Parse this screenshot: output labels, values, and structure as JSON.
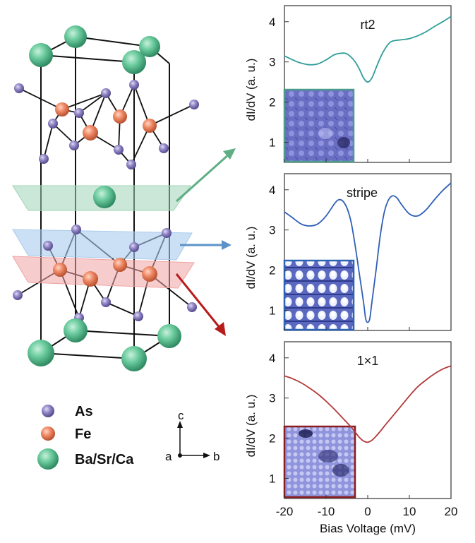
{
  "legend": {
    "items": [
      {
        "label": "As",
        "color": "#8f82bf"
      },
      {
        "label": "Fe",
        "color": "#ef8a6a"
      },
      {
        "label": "Ba/Sr/Ca",
        "color": "#62c49a"
      }
    ]
  },
  "axes_labels": {
    "c": "c",
    "a": "a",
    "b": "b"
  },
  "colors": {
    "plane_top": "#9fd4b6",
    "plane_mid": "#a9cbec",
    "plane_bot": "#f0a3a3",
    "arrow_top": "#5fae85",
    "arrow_mid": "#5b93c8",
    "arrow_bot": "#b71c1c"
  },
  "chart_data": [
    {
      "type": "line",
      "title": "rt2",
      "ylabel": "dI/dV (a. u.)",
      "xlim": [
        -20,
        20
      ],
      "ylim": [
        0.5,
        4.4
      ],
      "yticks": [
        1,
        2,
        3,
        4
      ],
      "color": "#2f9e99",
      "inset": "rt2-topograph",
      "series": [
        {
          "x": [
            -20,
            -18,
            -16,
            -14,
            -12,
            -10,
            -8,
            -6,
            -5,
            -4,
            -3,
            -2,
            -1,
            0,
            1,
            2,
            3,
            4,
            5,
            6,
            8,
            10,
            12,
            14,
            16,
            18,
            20
          ],
          "y": [
            3.15,
            3.05,
            2.97,
            2.93,
            2.95,
            3.05,
            3.18,
            3.22,
            3.2,
            3.12,
            3.0,
            2.82,
            2.6,
            2.5,
            2.6,
            2.85,
            3.1,
            3.3,
            3.45,
            3.52,
            3.55,
            3.58,
            3.65,
            3.75,
            3.88,
            4.0,
            4.13
          ]
        }
      ]
    },
    {
      "type": "line",
      "title": "stripe",
      "ylabel": "dI/dV (a. u.)",
      "xlim": [
        -20,
        20
      ],
      "ylim": [
        0.5,
        4.4
      ],
      "yticks": [
        1,
        2,
        3,
        4
      ],
      "color": "#2f5fb8",
      "inset": "stripe-topograph",
      "series": [
        {
          "x": [
            -20,
            -18,
            -16,
            -14,
            -12,
            -10,
            -8,
            -7,
            -6,
            -5,
            -4,
            -3,
            -2,
            -1,
            -0.5,
            0,
            0.5,
            1,
            2,
            3,
            4,
            5,
            6,
            7,
            8,
            10,
            12,
            14,
            16,
            18,
            20
          ],
          "y": [
            3.45,
            3.3,
            3.15,
            3.1,
            3.15,
            3.35,
            3.65,
            3.75,
            3.72,
            3.55,
            3.2,
            2.6,
            1.9,
            1.2,
            0.8,
            0.7,
            0.8,
            1.2,
            2.0,
            2.85,
            3.45,
            3.75,
            3.85,
            3.8,
            3.65,
            3.4,
            3.35,
            3.5,
            3.75,
            3.98,
            4.17
          ]
        }
      ]
    },
    {
      "type": "line",
      "title": "1×1",
      "ylabel": "dI/dV (a. u.)",
      "xlabel": "Bias Voltage (mV)",
      "xlim": [
        -20,
        20
      ],
      "ylim": [
        0.5,
        4.4
      ],
      "yticks": [
        1,
        2,
        3,
        4
      ],
      "xticks": [
        -20,
        -10,
        0,
        10,
        20
      ],
      "color": "#b23a3a",
      "inset": "1x1-topograph",
      "series": [
        {
          "x": [
            -20,
            -18,
            -16,
            -14,
            -12,
            -10,
            -8,
            -6,
            -4,
            -3,
            -2,
            -1,
            0,
            1,
            2,
            3,
            4,
            6,
            8,
            10,
            12,
            14,
            16,
            18,
            20
          ],
          "y": [
            3.55,
            3.48,
            3.38,
            3.25,
            3.1,
            2.92,
            2.72,
            2.5,
            2.28,
            2.15,
            2.02,
            1.93,
            1.9,
            1.95,
            2.05,
            2.17,
            2.3,
            2.55,
            2.8,
            3.05,
            3.28,
            3.45,
            3.6,
            3.72,
            3.8
          ]
        }
      ]
    }
  ]
}
